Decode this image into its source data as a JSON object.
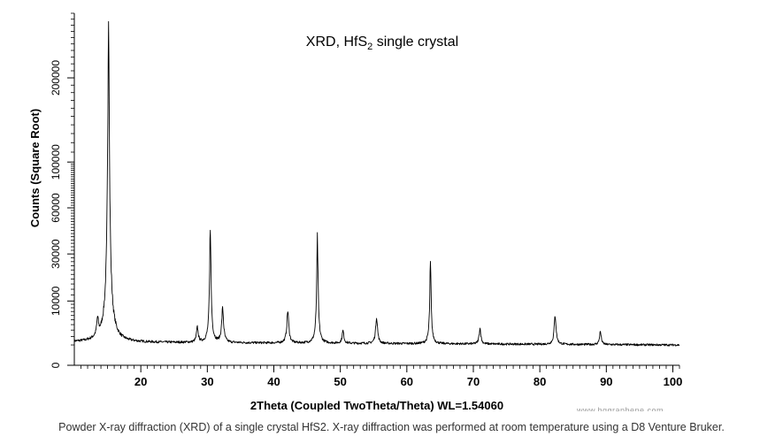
{
  "chart_data": {
    "type": "line",
    "title": {
      "prefix": "XRD, HfS",
      "subscript": "2",
      "suffix": " single crystal"
    },
    "xlabel": "2Theta (Coupled TwoTheta/Theta) WL=1.54060",
    "ylabel": "Counts (Square Root)",
    "y_scale": "sqrt",
    "xlim": [
      10,
      101
    ],
    "ylim": [
      0,
      300000
    ],
    "x_ticks": [
      20,
      30,
      40,
      50,
      60,
      70,
      80,
      90,
      100
    ],
    "x_tick_labels": [
      "20",
      "30",
      "40",
      "50",
      "60",
      "70",
      "80",
      "90",
      "100"
    ],
    "y_ticks": [
      0,
      10000,
      30000,
      60000,
      100000,
      200000
    ],
    "y_tick_labels": [
      "0",
      "10000",
      "30000",
      "60000",
      "100000",
      "200000"
    ],
    "background": 1000,
    "peaks": [
      {
        "two_theta": 13.5,
        "counts": 3200
      },
      {
        "two_theta": 15.15,
        "counts": 300000
      },
      {
        "two_theta": 28.5,
        "counts": 2200
      },
      {
        "two_theta": 30.45,
        "counts": 46000
      },
      {
        "two_theta": 32.3,
        "counts": 6500
      },
      {
        "two_theta": 42.1,
        "counts": 6000
      },
      {
        "two_theta": 46.55,
        "counts": 38000
      },
      {
        "two_theta": 50.4,
        "counts": 1700
      },
      {
        "two_theta": 55.45,
        "counts": 4500
      },
      {
        "two_theta": 63.55,
        "counts": 24000
      },
      {
        "two_theta": 71.0,
        "counts": 2200
      },
      {
        "two_theta": 82.3,
        "counts": 5000
      },
      {
        "two_theta": 89.1,
        "counts": 1700
      }
    ],
    "line_color": "#000000",
    "grid": false
  },
  "watermark": "www.hqgraphene.com",
  "caption": "Powder X-ray diffraction (XRD) of a single crystal HfS2. X-ray diffraction was performed at room temperature using a D8 Venture Bruker."
}
